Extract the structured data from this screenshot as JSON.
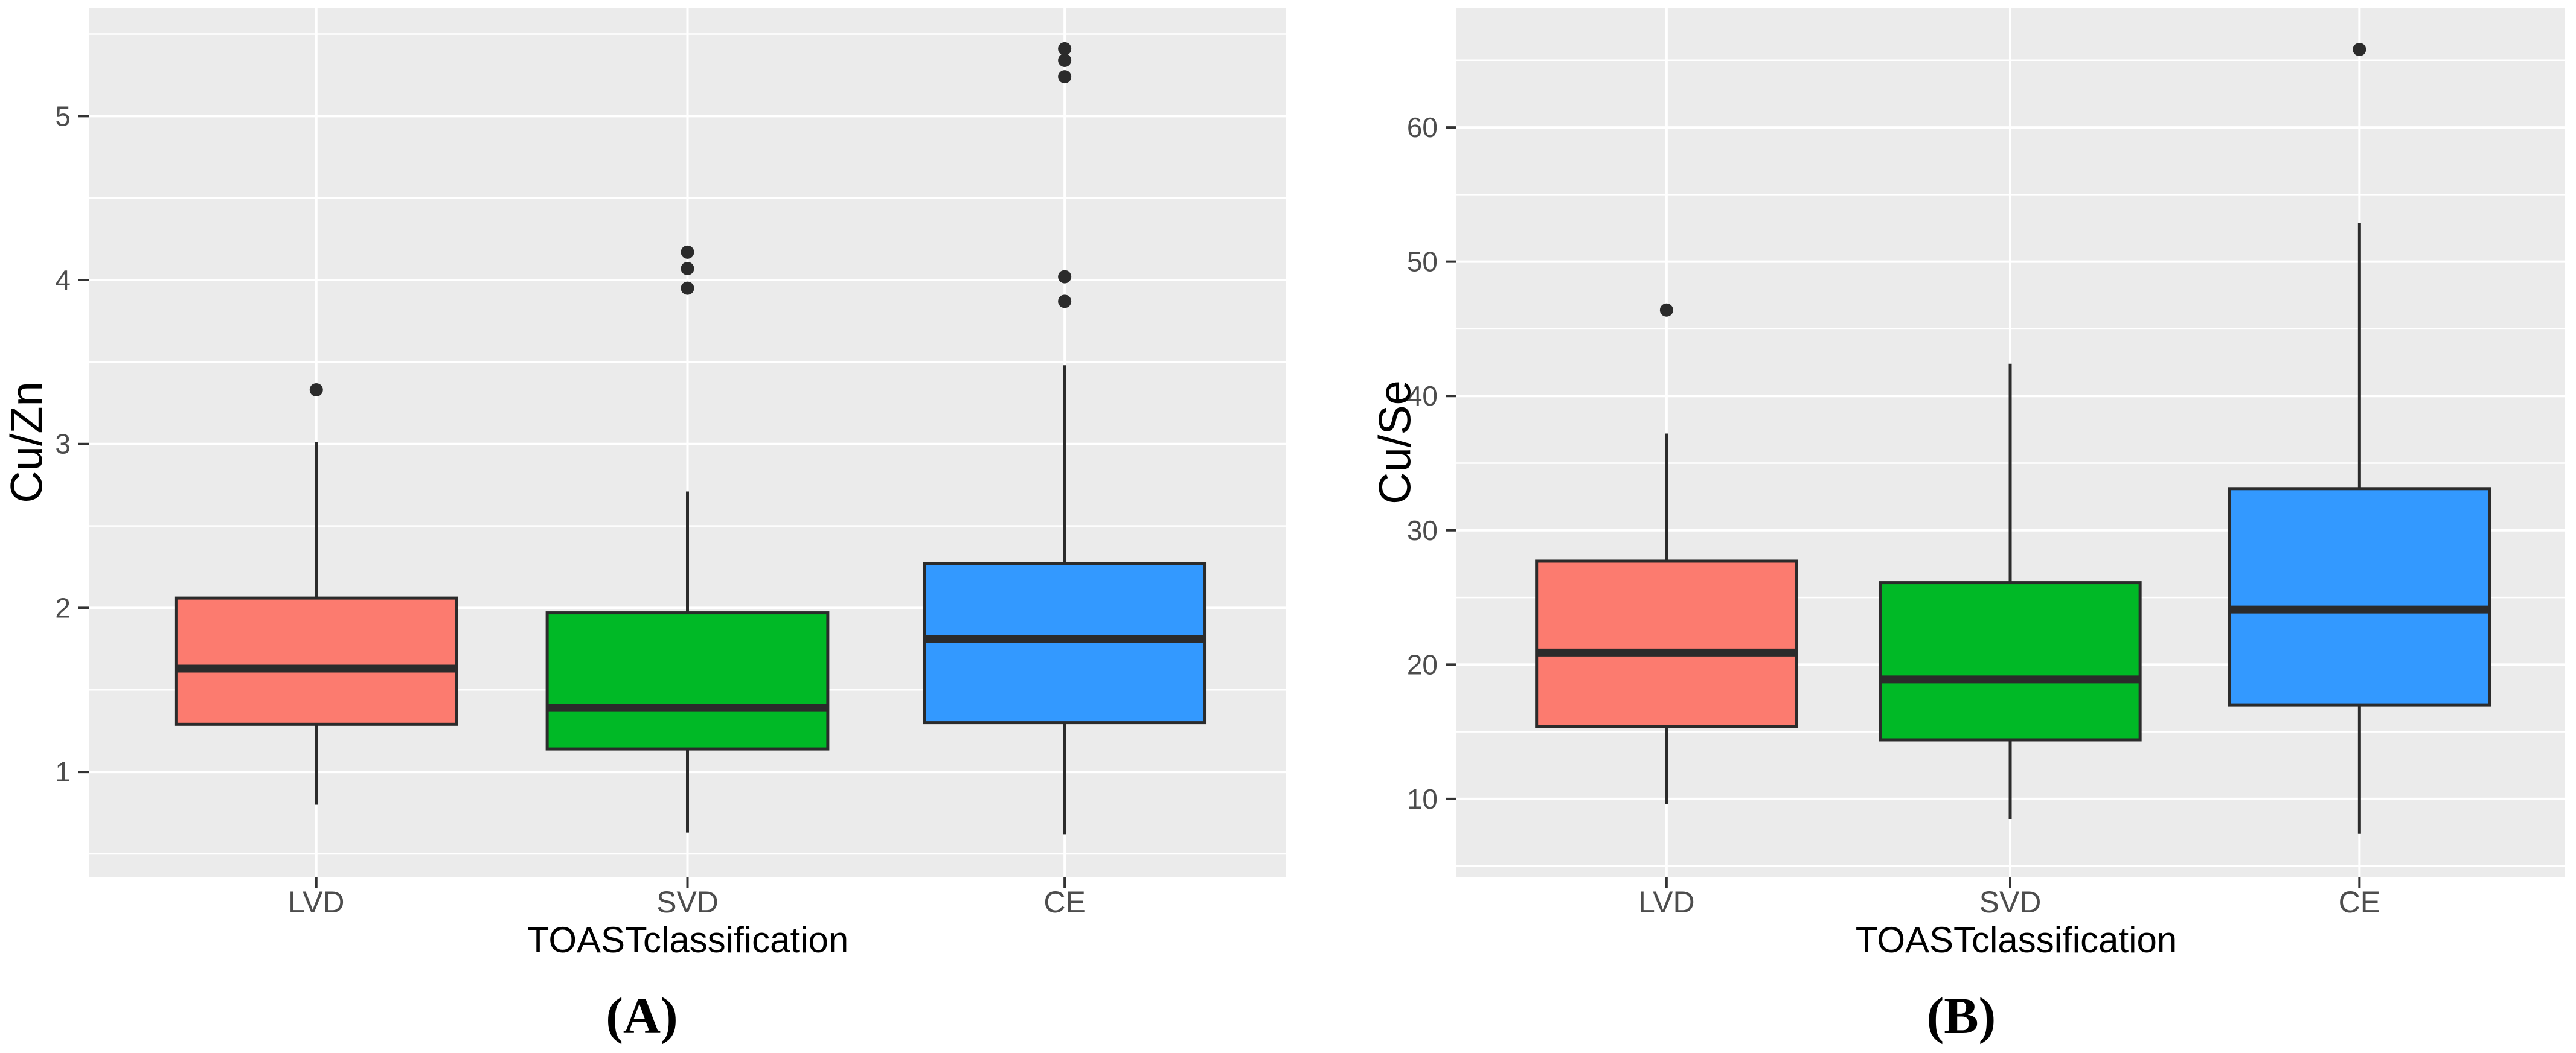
{
  "style": {
    "page_bg": "#FFFFFF",
    "panel_bg": "#EBEBEB",
    "grid_color": "#FFFFFF",
    "box_stroke": "#2B2B2B",
    "median_color": "#2B2B2B",
    "whisker_color": "#2B2B2B",
    "outlier_color": "#2B2B2B",
    "tick_mark_color": "#333333",
    "tick_text_color": "#4D4D4D",
    "title_text_color": "#000000",
    "fill_lvd": "#FC7B6F",
    "fill_svd": "#00B926",
    "fill_ce": "#3399FF"
  },
  "chart_data": [
    {
      "type": "boxplot",
      "panel_label": "(A)",
      "xlabel": "TOASTclassification",
      "ylabel": "Cu/Zn",
      "categories": [
        "LVD",
        "SVD",
        "CE"
      ],
      "ylim": [
        0.36,
        5.66
      ],
      "yticks": [
        1,
        2,
        3,
        4,
        5
      ],
      "grid": true,
      "legend": false,
      "series": [
        {
          "category": "LVD",
          "color": "#FC7B6F",
          "whisker_low": 0.8,
          "q1": 1.29,
          "median": 1.63,
          "q3": 2.06,
          "whisker_high": 3.01,
          "outliers": [
            3.33
          ]
        },
        {
          "category": "SVD",
          "color": "#00B926",
          "whisker_low": 0.63,
          "q1": 1.14,
          "median": 1.39,
          "q3": 1.97,
          "whisker_high": 2.71,
          "outliers": [
            3.95,
            4.07,
            4.17
          ]
        },
        {
          "category": "CE",
          "color": "#3399FF",
          "whisker_low": 0.62,
          "q1": 1.3,
          "median": 1.81,
          "q3": 2.27,
          "whisker_high": 3.48,
          "outliers": [
            3.87,
            4.02,
            5.24,
            5.34,
            5.41
          ]
        }
      ]
    },
    {
      "type": "boxplot",
      "panel_label": "(B)",
      "xlabel": "TOASTclassification",
      "ylabel": "Cu/Se",
      "categories": [
        "LVD",
        "SVD",
        "CE"
      ],
      "ylim": [
        4.2,
        68.9
      ],
      "yticks": [
        10,
        20,
        30,
        40,
        50,
        60
      ],
      "grid": true,
      "legend": false,
      "series": [
        {
          "category": "LVD",
          "color": "#FC7B6F",
          "whisker_low": 9.6,
          "q1": 15.4,
          "median": 20.9,
          "q3": 27.7,
          "whisker_high": 37.2,
          "outliers": [
            46.4
          ]
        },
        {
          "category": "SVD",
          "color": "#00B926",
          "whisker_low": 8.5,
          "q1": 14.4,
          "median": 18.9,
          "q3": 26.1,
          "whisker_high": 42.4,
          "outliers": []
        },
        {
          "category": "CE",
          "color": "#3399FF",
          "whisker_low": 7.4,
          "q1": 17.0,
          "median": 24.1,
          "q3": 33.1,
          "whisker_high": 52.9,
          "outliers": [
            65.8
          ]
        }
      ]
    }
  ]
}
